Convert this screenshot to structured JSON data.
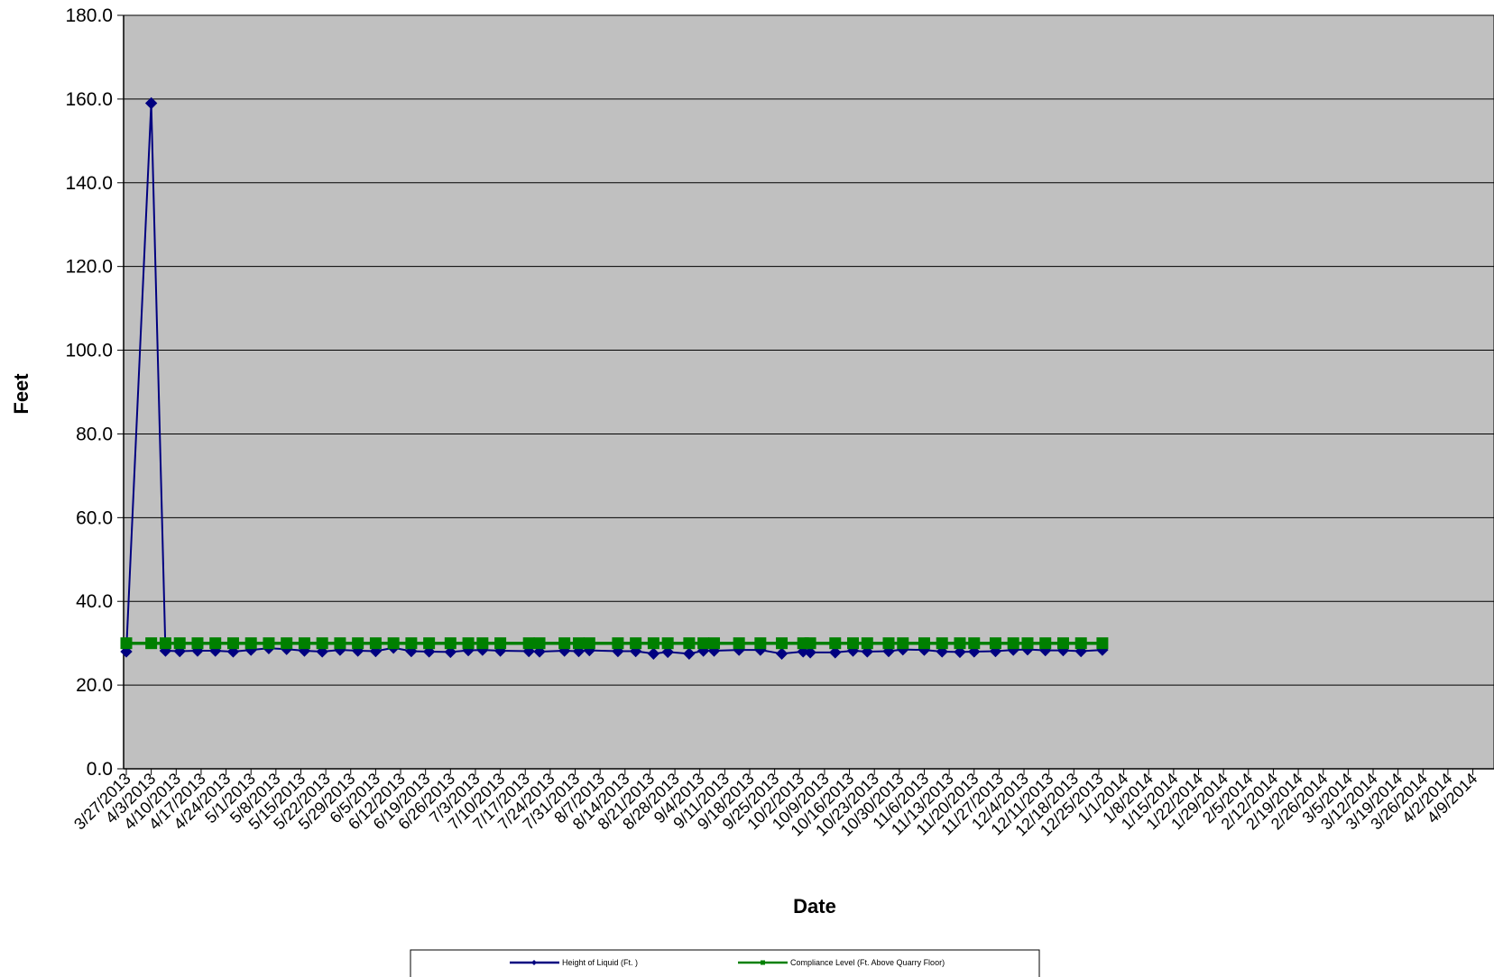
{
  "chart_data": {
    "type": "line",
    "title": "",
    "xlabel": "Date",
    "ylabel": "Feet",
    "ylim": [
      0,
      180
    ],
    "y_ticks": [
      "0.0",
      "20.0",
      "40.0",
      "60.0",
      "80.0",
      "100.0",
      "120.0",
      "140.0",
      "160.0",
      "180.0"
    ],
    "grid": "horizontal major gridlines",
    "plot_background": "#C0C0C0",
    "legend_position": "bottom",
    "x_tick_labels": [
      "3/27/2013",
      "4/3/2013",
      "4/10/2013",
      "4/17/2013",
      "4/24/2013",
      "5/1/2013",
      "5/8/2013",
      "5/15/2013",
      "5/22/2013",
      "5/29/2013",
      "6/5/2013",
      "6/12/2013",
      "6/19/2013",
      "6/26/2013",
      "7/3/2013",
      "7/10/2013",
      "7/17/2013",
      "7/24/2013",
      "7/31/2013",
      "8/7/2013",
      "8/14/2013",
      "8/21/2013",
      "8/28/2013",
      "9/4/2013",
      "9/11/2013",
      "9/18/2013",
      "9/25/2013",
      "10/2/2013",
      "10/9/2013",
      "10/16/2013",
      "10/23/2013",
      "10/30/2013",
      "11/6/2013",
      "11/13/2013",
      "11/20/2013",
      "11/27/2013",
      "12/4/2013",
      "12/11/2013",
      "12/18/2013",
      "12/25/2013",
      "1/1/2014",
      "1/8/2014",
      "1/15/2014",
      "1/22/2014",
      "1/29/2014",
      "2/5/2014",
      "2/12/2014",
      "2/19/2014",
      "2/26/2014",
      "3/5/2014",
      "3/12/2014",
      "3/19/2014",
      "3/26/2014",
      "4/2/2014",
      "4/9/2014"
    ],
    "series": [
      {
        "name": "Height of Liquid (Ft. )",
        "color": "#000080",
        "marker": "diamond",
        "points": [
          [
            "2013-03-27",
            28.0
          ],
          [
            "2013-04-03",
            159.0
          ],
          [
            "2013-04-07",
            28.2
          ],
          [
            "2013-04-11",
            28.1
          ],
          [
            "2013-04-16",
            28.2
          ],
          [
            "2013-04-21",
            28.2
          ],
          [
            "2013-04-26",
            28.0
          ],
          [
            "2013-05-01",
            28.4
          ],
          [
            "2013-05-06",
            28.8
          ],
          [
            "2013-05-11",
            28.6
          ],
          [
            "2013-05-16",
            28.2
          ],
          [
            "2013-05-21",
            28.0
          ],
          [
            "2013-05-26",
            28.4
          ],
          [
            "2013-05-31",
            28.2
          ],
          [
            "2013-06-05",
            28.1
          ],
          [
            "2013-06-10",
            28.9
          ],
          [
            "2013-06-15",
            28.1
          ],
          [
            "2013-06-20",
            28.0
          ],
          [
            "2013-06-26",
            27.9
          ],
          [
            "2013-07-01",
            28.3
          ],
          [
            "2013-07-05",
            28.4
          ],
          [
            "2013-07-10",
            28.2
          ],
          [
            "2013-07-18",
            28.1
          ],
          [
            "2013-07-21",
            28.0
          ],
          [
            "2013-07-28",
            28.2
          ],
          [
            "2013-08-01",
            28.1
          ],
          [
            "2013-08-04",
            28.3
          ],
          [
            "2013-08-12",
            28.1
          ],
          [
            "2013-08-17",
            28.1
          ],
          [
            "2013-08-22",
            27.5
          ],
          [
            "2013-08-26",
            27.9
          ],
          [
            "2013-09-01",
            27.5
          ],
          [
            "2013-09-05",
            28.2
          ],
          [
            "2013-09-08",
            28.2
          ],
          [
            "2013-09-15",
            28.4
          ],
          [
            "2013-09-21",
            28.4
          ],
          [
            "2013-09-27",
            27.5
          ],
          [
            "2013-10-03",
            28.0
          ],
          [
            "2013-10-05",
            27.8
          ],
          [
            "2013-10-12",
            27.8
          ],
          [
            "2013-10-17",
            28.2
          ],
          [
            "2013-10-21",
            28.0
          ],
          [
            "2013-10-27",
            28.1
          ],
          [
            "2013-10-31",
            28.5
          ],
          [
            "2013-11-06",
            28.4
          ],
          [
            "2013-11-11",
            28.0
          ],
          [
            "2013-11-16",
            27.9
          ],
          [
            "2013-11-20",
            28.0
          ],
          [
            "2013-11-26",
            28.1
          ],
          [
            "2013-12-01",
            28.4
          ],
          [
            "2013-12-05",
            28.5
          ],
          [
            "2013-12-10",
            28.3
          ],
          [
            "2013-12-15",
            28.3
          ],
          [
            "2013-12-20",
            28.1
          ],
          [
            "2013-12-26",
            28.4
          ]
        ]
      },
      {
        "name": "Compliance Level (Ft. Above Quarry Floor)",
        "color": "#008000",
        "marker": "square",
        "points": [
          [
            "2013-03-27",
            30.0
          ],
          [
            "2013-04-03",
            30.0
          ],
          [
            "2013-04-07",
            30.0
          ],
          [
            "2013-04-11",
            30.0
          ],
          [
            "2013-04-16",
            30.0
          ],
          [
            "2013-04-21",
            30.0
          ],
          [
            "2013-04-26",
            30.0
          ],
          [
            "2013-05-01",
            30.0
          ],
          [
            "2013-05-06",
            30.0
          ],
          [
            "2013-05-11",
            30.0
          ],
          [
            "2013-05-16",
            30.0
          ],
          [
            "2013-05-21",
            30.0
          ],
          [
            "2013-05-26",
            30.0
          ],
          [
            "2013-05-31",
            30.0
          ],
          [
            "2013-06-05",
            30.0
          ],
          [
            "2013-06-10",
            30.0
          ],
          [
            "2013-06-15",
            30.0
          ],
          [
            "2013-06-20",
            30.0
          ],
          [
            "2013-06-26",
            30.0
          ],
          [
            "2013-07-01",
            30.0
          ],
          [
            "2013-07-05",
            30.0
          ],
          [
            "2013-07-10",
            30.0
          ],
          [
            "2013-07-18",
            30.0
          ],
          [
            "2013-07-21",
            30.0
          ],
          [
            "2013-07-28",
            30.0
          ],
          [
            "2013-08-01",
            30.0
          ],
          [
            "2013-08-04",
            30.0
          ],
          [
            "2013-08-12",
            30.0
          ],
          [
            "2013-08-17",
            30.0
          ],
          [
            "2013-08-22",
            30.0
          ],
          [
            "2013-08-26",
            30.0
          ],
          [
            "2013-09-01",
            30.0
          ],
          [
            "2013-09-05",
            30.0
          ],
          [
            "2013-09-08",
            30.0
          ],
          [
            "2013-09-15",
            30.0
          ],
          [
            "2013-09-21",
            30.0
          ],
          [
            "2013-09-27",
            30.0
          ],
          [
            "2013-10-03",
            30.0
          ],
          [
            "2013-10-05",
            30.0
          ],
          [
            "2013-10-12",
            30.0
          ],
          [
            "2013-10-17",
            30.0
          ],
          [
            "2013-10-21",
            30.0
          ],
          [
            "2013-10-27",
            30.0
          ],
          [
            "2013-10-31",
            30.0
          ],
          [
            "2013-11-06",
            30.0
          ],
          [
            "2013-11-11",
            30.0
          ],
          [
            "2013-11-16",
            30.0
          ],
          [
            "2013-11-20",
            30.0
          ],
          [
            "2013-11-26",
            30.0
          ],
          [
            "2013-12-01",
            30.0
          ],
          [
            "2013-12-05",
            30.0
          ],
          [
            "2013-12-10",
            30.0
          ],
          [
            "2013-12-15",
            30.0
          ],
          [
            "2013-12-20",
            30.0
          ],
          [
            "2013-12-26",
            30.0
          ]
        ]
      }
    ]
  }
}
